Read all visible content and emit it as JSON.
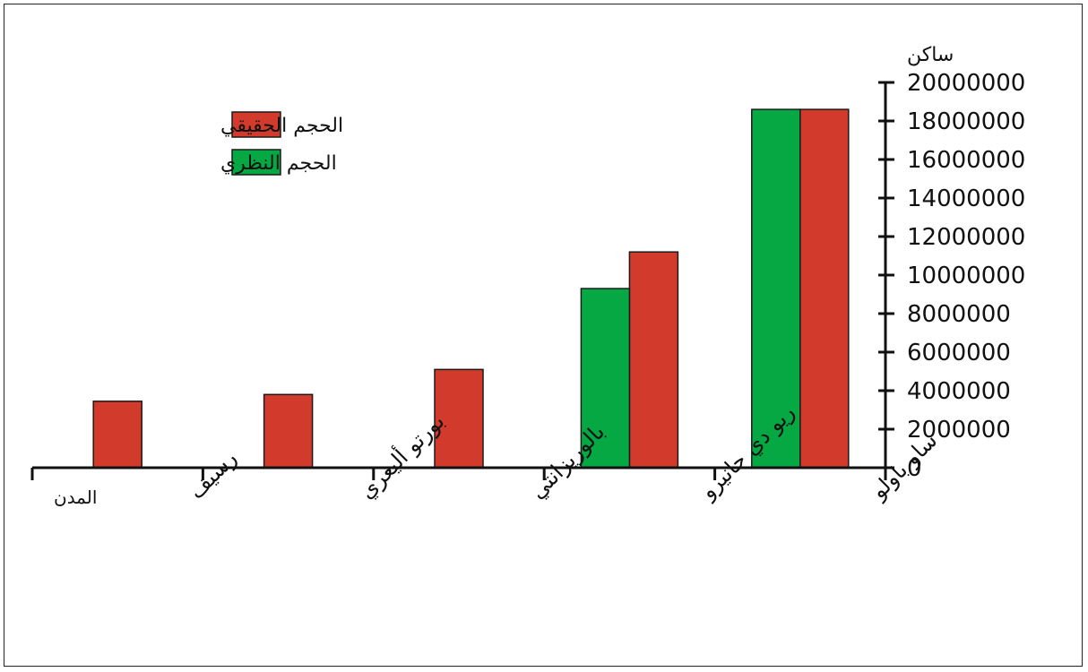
{
  "chart_data": {
    "type": "bar",
    "y_axis_label": "ساكن",
    "x_axis_label": "المدن",
    "categories": [
      "ساو باولو",
      "ريو دي جانيرو",
      "بالوريزانتي",
      "بورتو أليغري",
      "رسيف"
    ],
    "series": [
      {
        "name": "الحجم الحقيقي",
        "color": "#d23a2b",
        "values": [
          18600000,
          11200000,
          5100000,
          3800000,
          3450000
        ]
      },
      {
        "name": "الحجم النظري",
        "color": "#06a843",
        "values": [
          18600000,
          9300000,
          null,
          null,
          null
        ]
      }
    ],
    "ylim": [
      0,
      20000000
    ],
    "yticks": [
      0,
      2000000,
      4000000,
      6000000,
      8000000,
      10000000,
      12000000,
      14000000,
      16000000,
      18000000,
      20000000
    ],
    "legend_position": "top-left",
    "grid": false
  }
}
